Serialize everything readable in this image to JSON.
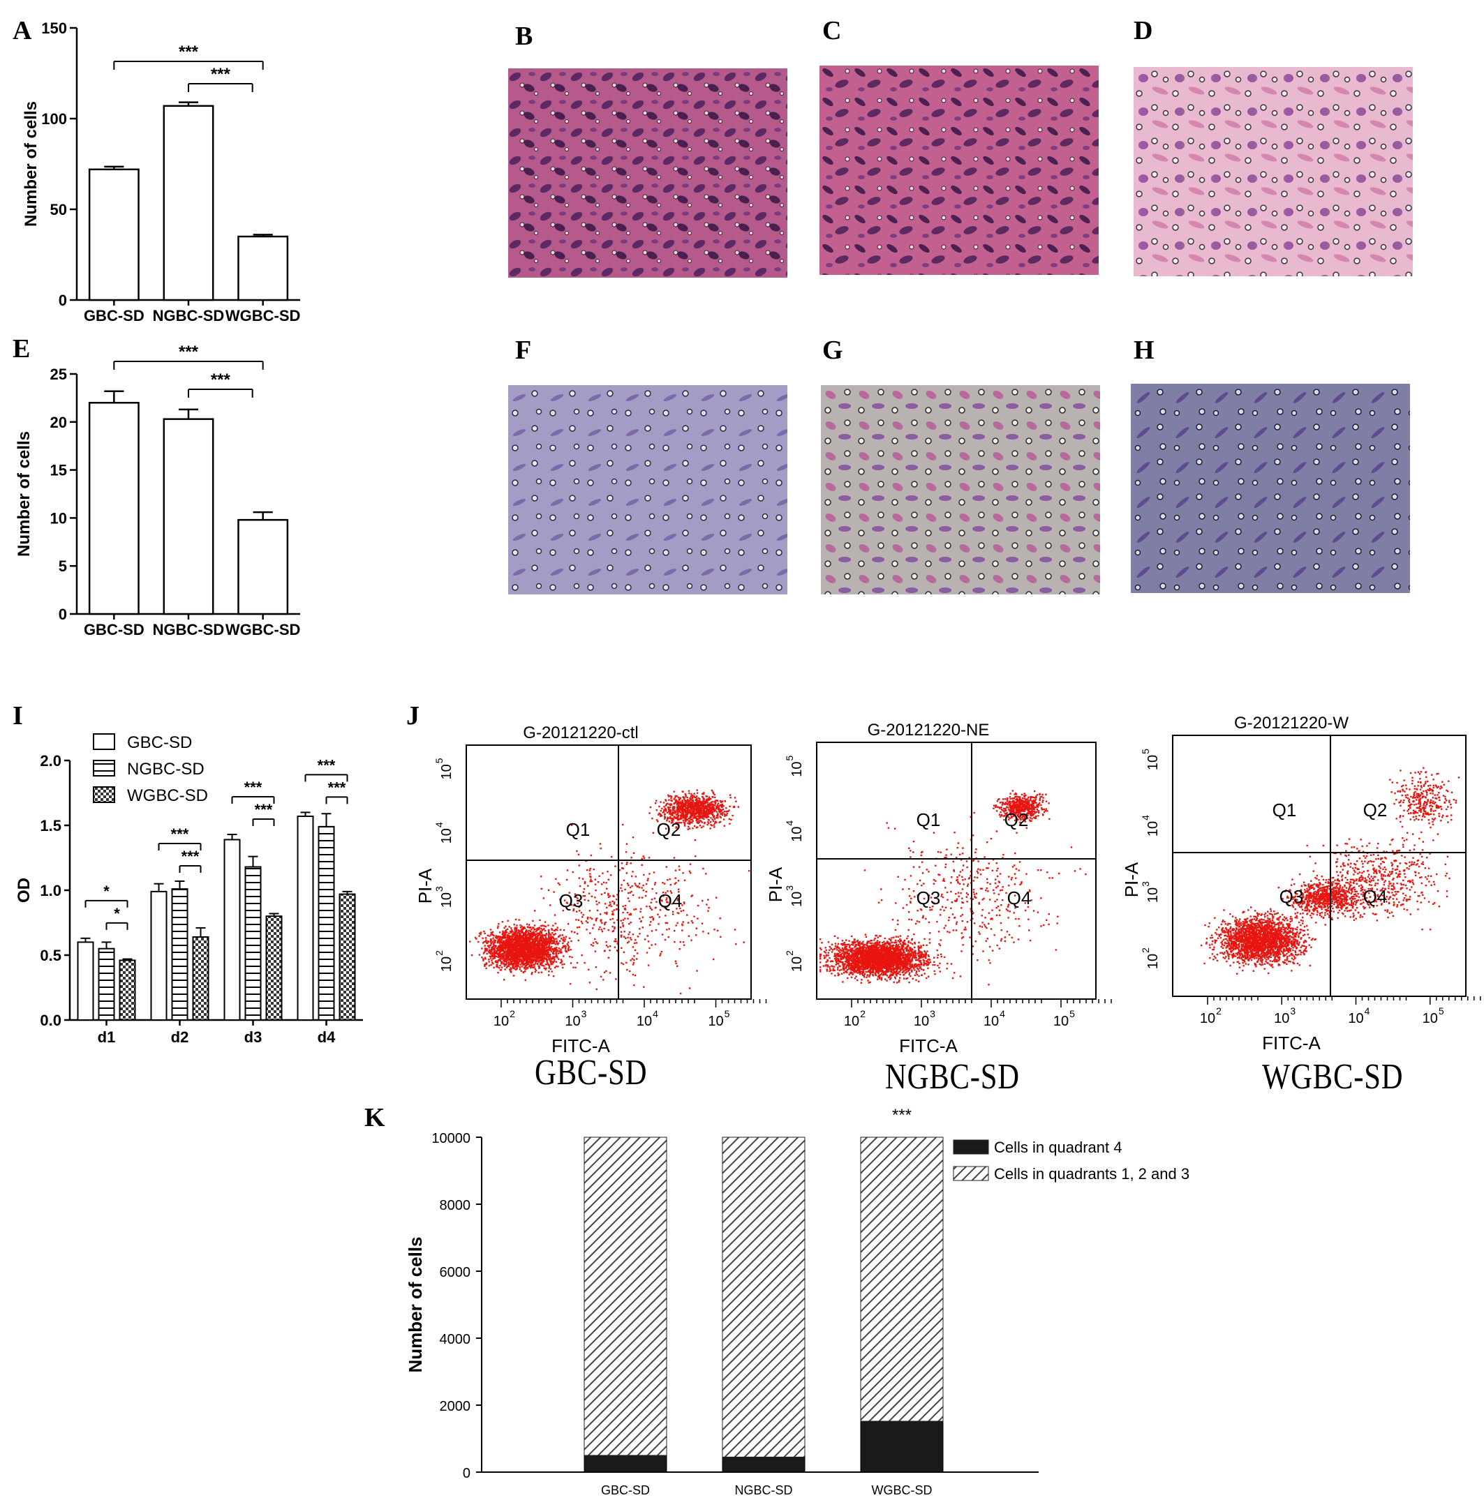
{
  "panels": {
    "A": "A",
    "B": "B",
    "C": "C",
    "D": "D",
    "E": "E",
    "F": "F",
    "G": "G",
    "H": "H",
    "I": "I",
    "J": "J",
    "K": "K"
  },
  "colors": {
    "he_stain": "#b0457e",
    "crystal_violet": "#8f86b8",
    "flow_dots": "#e8140f",
    "stacked_dark": "#1a1a1a"
  },
  "chart_data": [
    {
      "id": "A",
      "type": "bar",
      "categories": [
        "GBC-SD",
        "NGBC-SD",
        "WGBC-SD"
      ],
      "values": [
        72,
        107,
        35
      ],
      "errors": [
        1.5,
        2,
        1
      ],
      "ylabel": "Number of cells",
      "ylim": [
        0,
        150
      ],
      "yticks": [
        0,
        50,
        100,
        150
      ],
      "significance": [
        {
          "from": 0,
          "to": 2,
          "label": "***"
        },
        {
          "from": 1,
          "to": 2,
          "label": "***"
        }
      ]
    },
    {
      "id": "E",
      "type": "bar",
      "categories": [
        "GBC-SD",
        "NGBC-SD",
        "WGBC-SD"
      ],
      "values": [
        22,
        20.3,
        9.8
      ],
      "errors": [
        1.2,
        1.0,
        0.8
      ],
      "ylabel": "Number of cells",
      "ylim": [
        0,
        25
      ],
      "yticks": [
        0,
        5,
        10,
        15,
        20,
        25
      ],
      "significance": [
        {
          "from": 0,
          "to": 2,
          "label": "***"
        },
        {
          "from": 1,
          "to": 2,
          "label": "***"
        }
      ]
    },
    {
      "id": "I",
      "type": "bar",
      "categories": [
        "d1",
        "d2",
        "d3",
        "d4"
      ],
      "series": [
        {
          "name": "GBC-SD",
          "values": [
            0.6,
            0.99,
            1.39,
            1.57
          ],
          "errors": [
            0.03,
            0.06,
            0.04,
            0.03
          ]
        },
        {
          "name": "NGBC-SD",
          "values": [
            0.55,
            1.01,
            1.18,
            1.49
          ],
          "errors": [
            0.05,
            0.06,
            0.08,
            0.1
          ]
        },
        {
          "name": "WGBC-SD",
          "values": [
            0.46,
            0.64,
            0.8,
            0.97
          ],
          "errors": [
            0.01,
            0.07,
            0.02,
            0.02
          ]
        }
      ],
      "ylabel": "OD",
      "ylim": [
        0,
        2.0
      ],
      "yticks": [
        "0.0",
        "0.5",
        "1.0",
        "1.5",
        "2.0"
      ],
      "legend_position": "top-left",
      "significance": [
        {
          "group": 0,
          "outer": "*",
          "inner": "*"
        },
        {
          "group": 1,
          "outer": "***",
          "inner": "***"
        },
        {
          "group": 2,
          "outer": "***",
          "inner": "***"
        },
        {
          "group": 3,
          "outer": "***",
          "inner": "***"
        }
      ]
    },
    {
      "id": "J",
      "type": "scatter",
      "plots": [
        {
          "title": "G-20121220-ctl",
          "caption": "GBC-SD"
        },
        {
          "title": "G-20121220-NE",
          "caption": "NGBC-SD"
        },
        {
          "title": "G-20121220-W",
          "caption": "WGBC-SD"
        }
      ],
      "xlabel": "FITC-A",
      "ylabel": "PI-A",
      "quadrants": [
        "Q1",
        "Q2",
        "Q3",
        "Q4"
      ],
      "log_ticks": [
        "10",
        "10",
        "10",
        "10"
      ],
      "log_exponents": [
        "2",
        "3",
        "4",
        "5"
      ]
    },
    {
      "id": "K",
      "type": "bar",
      "stacked": true,
      "categories": [
        "GBC-SD",
        "NGBC-SD",
        "WGBC-SD"
      ],
      "series": [
        {
          "name": "Cells in quadrant 4",
          "values": [
            500,
            450,
            1520
          ]
        },
        {
          "name": "Cells in quadrants 1, 2 and 3",
          "values": [
            9500,
            9550,
            8480
          ]
        }
      ],
      "ylabel": "Number of cells",
      "ylim": [
        0,
        10000
      ],
      "yticks": [
        0,
        2000,
        4000,
        6000,
        8000,
        10000
      ],
      "legend_position": "top-right",
      "annotation": {
        "category": 2,
        "label": "***"
      }
    }
  ]
}
